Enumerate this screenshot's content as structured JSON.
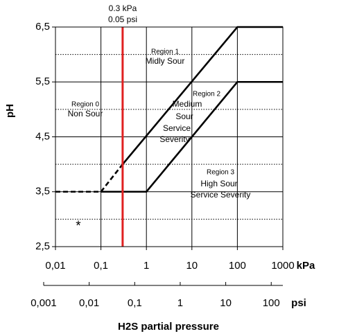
{
  "chart_data": {
    "type": "line",
    "ylabel": "pH",
    "xunit": "kPa",
    "x2unit": "psi",
    "xlabel": "H2S partial pressure",
    "xscale": "log",
    "xlim": [
      0.01,
      1000
    ],
    "xticks": [
      {
        "value": 0.01,
        "label": "0,01"
      },
      {
        "value": 0.1,
        "label": "0,1"
      },
      1,
      10,
      100,
      1000
    ],
    "x2lim": [
      0.001,
      180
    ],
    "x2ticks": [
      {
        "value": 0.001,
        "label": "0,001"
      },
      {
        "value": 0.01,
        "label": "0,01"
      },
      {
        "value": 0.1,
        "label": "0,1"
      },
      1,
      10,
      100
    ],
    "ylim": [
      2.5,
      6.5
    ],
    "yticks": [
      {
        "value": 2.5,
        "label": "2,5"
      },
      {
        "value": 3.5,
        "label": "3,5"
      },
      {
        "value": 4.5,
        "label": "4,5"
      },
      {
        "value": 5.5,
        "label": "5,5"
      },
      {
        "value": 6.5,
        "label": "6,5"
      }
    ],
    "yminorticks": [
      3,
      4,
      5,
      6
    ],
    "grid": true,
    "series": [
      {
        "color": "#000000",
        "dashed": true,
        "x": [
          0.01,
          0.1
        ],
        "values": [
          3.5,
          3.5
        ]
      },
      {
        "color": "#000000",
        "dashed": true,
        "x": [
          0.1,
          0.3
        ],
        "values": [
          3.5,
          4.0
        ]
      },
      {
        "color": "#000000",
        "dashed": false,
        "x": [
          0.3,
          100,
          1000
        ],
        "values": [
          4.0,
          6.5,
          6.5
        ]
      },
      {
        "color": "#000000",
        "dashed": false,
        "x": [
          0.1,
          1,
          100,
          1000
        ],
        "values": [
          3.5,
          3.5,
          5.5,
          5.5
        ]
      },
      {
        "color": "#e02020",
        "dashed": false,
        "x": [
          0.3,
          0.3
        ],
        "values": [
          2.5,
          6.5
        ]
      }
    ],
    "annotations": [
      "0.3 kPa",
      "0.05 psi",
      "Region 1",
      "Midly Sour",
      "Region 2",
      "Medium",
      "Sour",
      "Service",
      "Severity",
      "Region 0",
      "Non Sour",
      "Region 3",
      "High Sour",
      "Service Severity",
      "*"
    ]
  }
}
